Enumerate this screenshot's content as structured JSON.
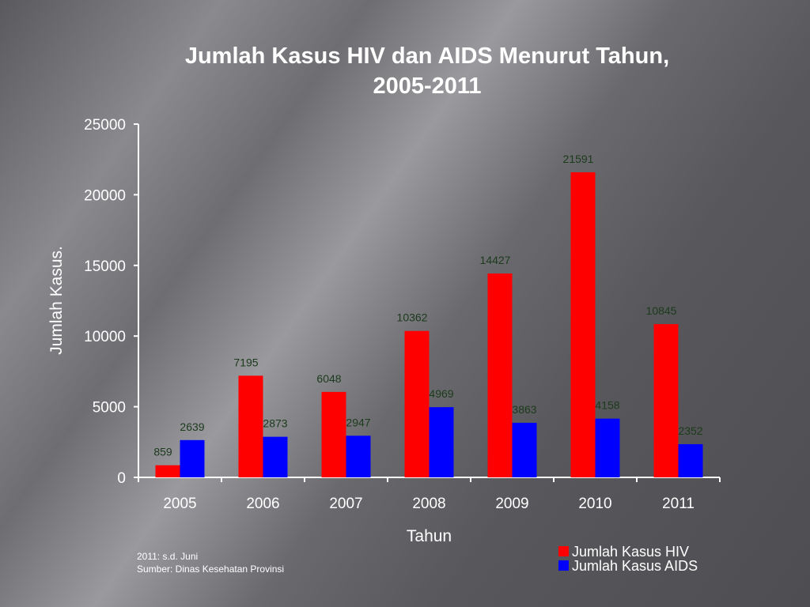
{
  "chart_data": {
    "type": "bar",
    "title": [
      "Jumlah Kasus HIV dan AIDS Menurut Tahun,",
      "2005-2011"
    ],
    "xlabel": "Tahun",
    "ylabel": "Jumlah Kasus.",
    "ylim": [
      0,
      25000
    ],
    "yticks": [
      0,
      5000,
      10000,
      15000,
      20000,
      25000
    ],
    "categories": [
      "2005",
      "2006",
      "2007",
      "2008",
      "2009",
      "2010",
      "2011"
    ],
    "series": [
      {
        "name": "Jumlah Kasus HIV",
        "color": "#ff0000",
        "values": [
          859,
          7195,
          6048,
          10362,
          14427,
          21591,
          10845
        ]
      },
      {
        "name": "Jumlah Kasus AIDS",
        "color": "#0000ff",
        "values": [
          2639,
          2873,
          2947,
          4969,
          3863,
          4158,
          2352
        ]
      }
    ],
    "data_label_color": "#1c3a1c",
    "grid": false,
    "legend": "bottom-right"
  },
  "notes": [
    "2011: s.d. Juni",
    "Sumber: Dinas Kesehatan Provinsi"
  ]
}
